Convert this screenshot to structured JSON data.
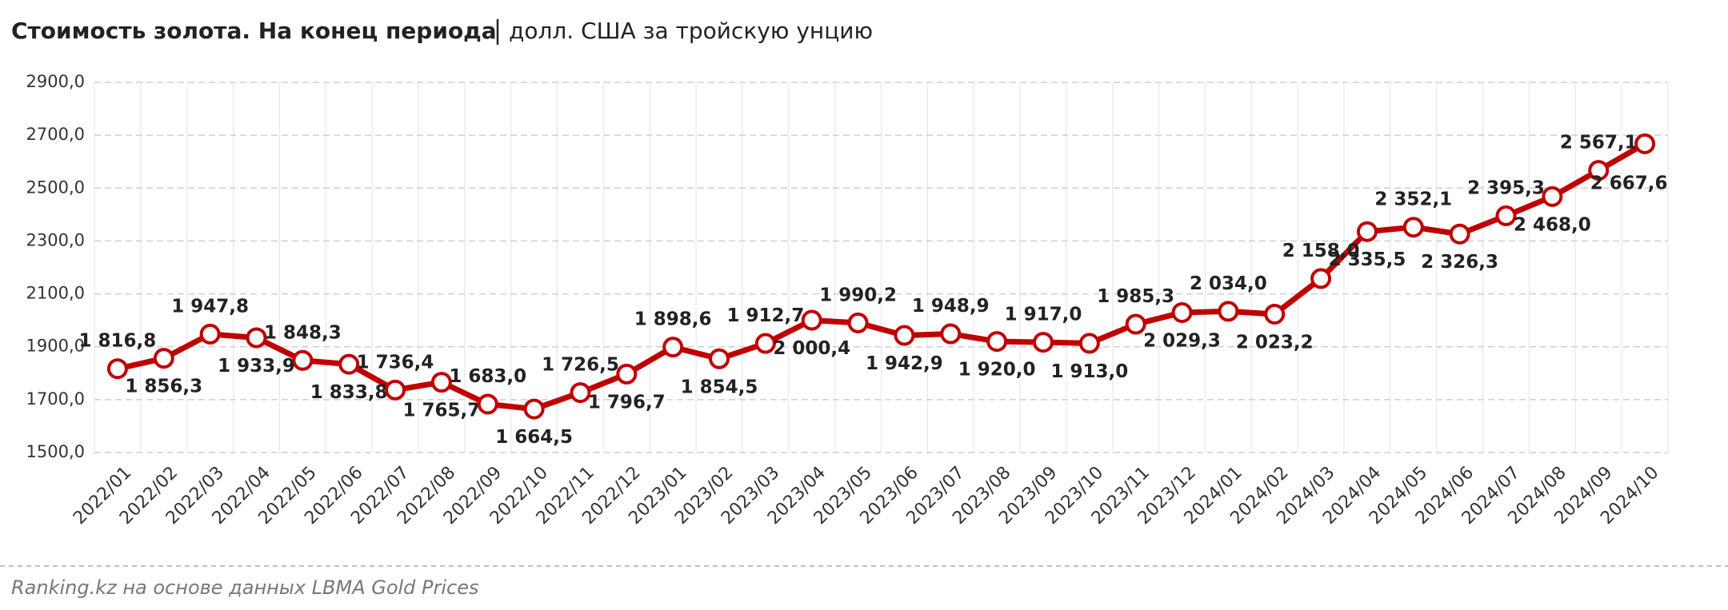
{
  "chart_data": {
    "type": "line",
    "title": "Стоимость золота. На конец периода",
    "subtitle": "долл. США за тройскую унцию",
    "source": "Ranking.kz на основе данных LBMA Gold Prices",
    "categories": [
      "2022/01",
      "2022/02",
      "2022/03",
      "2022/04",
      "2022/05",
      "2022/06",
      "2022/07",
      "2022/08",
      "2022/09",
      "2022/10",
      "2022/11",
      "2022/12",
      "2023/01",
      "2023/02",
      "2023/03",
      "2023/04",
      "2023/05",
      "2023/06",
      "2023/07",
      "2023/08",
      "2023/09",
      "2023/10",
      "2023/11",
      "2023/12",
      "2024/01",
      "2024/02",
      "2024/03",
      "2024/04",
      "2024/05",
      "2024/06",
      "2024/07",
      "2024/08",
      "2024/09",
      "2024/10"
    ],
    "values": [
      1816.8,
      1856.3,
      1947.8,
      1933.9,
      1848.3,
      1833.8,
      1736.4,
      1765.7,
      1683.0,
      1664.5,
      1726.5,
      1796.7,
      1898.6,
      1854.5,
      1912.7,
      2000.4,
      1990.2,
      1942.9,
      1948.9,
      1920.0,
      1917.0,
      1913.0,
      1985.3,
      2029.3,
      2034.0,
      2023.2,
      2158.0,
      2335.5,
      2352.1,
      2326.3,
      2395.3,
      2468.0,
      2567.1,
      2667.6
    ],
    "value_labels": [
      "1 816,8",
      "1 856,3",
      "1 947,8",
      "1 933,9",
      "1 848,3",
      "1 833,8",
      "1 736,4",
      "1 765,7",
      "1 683,0",
      "1 664,5",
      "1 726,5",
      "1 796,7",
      "1 898,6",
      "1 854,5",
      "1 912,7",
      "2 000,4",
      "1 990,2",
      "1 942,9",
      "1 948,9",
      "1 920,0",
      "1 917,0",
      "1 913,0",
      "1 985,3",
      "2 029,3",
      "2 034,0",
      "2 023,2",
      "2 158,0",
      "2 335,5",
      "2 352,1",
      "2 326,3",
      "2 395,3",
      "2 468,0",
      "2 567,1",
      "2 667,6"
    ],
    "color": "#c00000",
    "ylim": [
      1500,
      2900
    ],
    "yticks": [
      {
        "value": 1500,
        "label": "1500,0"
      },
      {
        "value": 1700,
        "label": "1700,0"
      },
      {
        "value": 1900,
        "label": "1900,0"
      },
      {
        "value": 2100,
        "label": "2100,0"
      },
      {
        "value": 2300,
        "label": "2300,0"
      },
      {
        "value": 2500,
        "label": "2500,0"
      },
      {
        "value": 2700,
        "label": "2700,0"
      },
      {
        "value": 2900,
        "label": "2900,0"
      }
    ],
    "grid": true
  }
}
